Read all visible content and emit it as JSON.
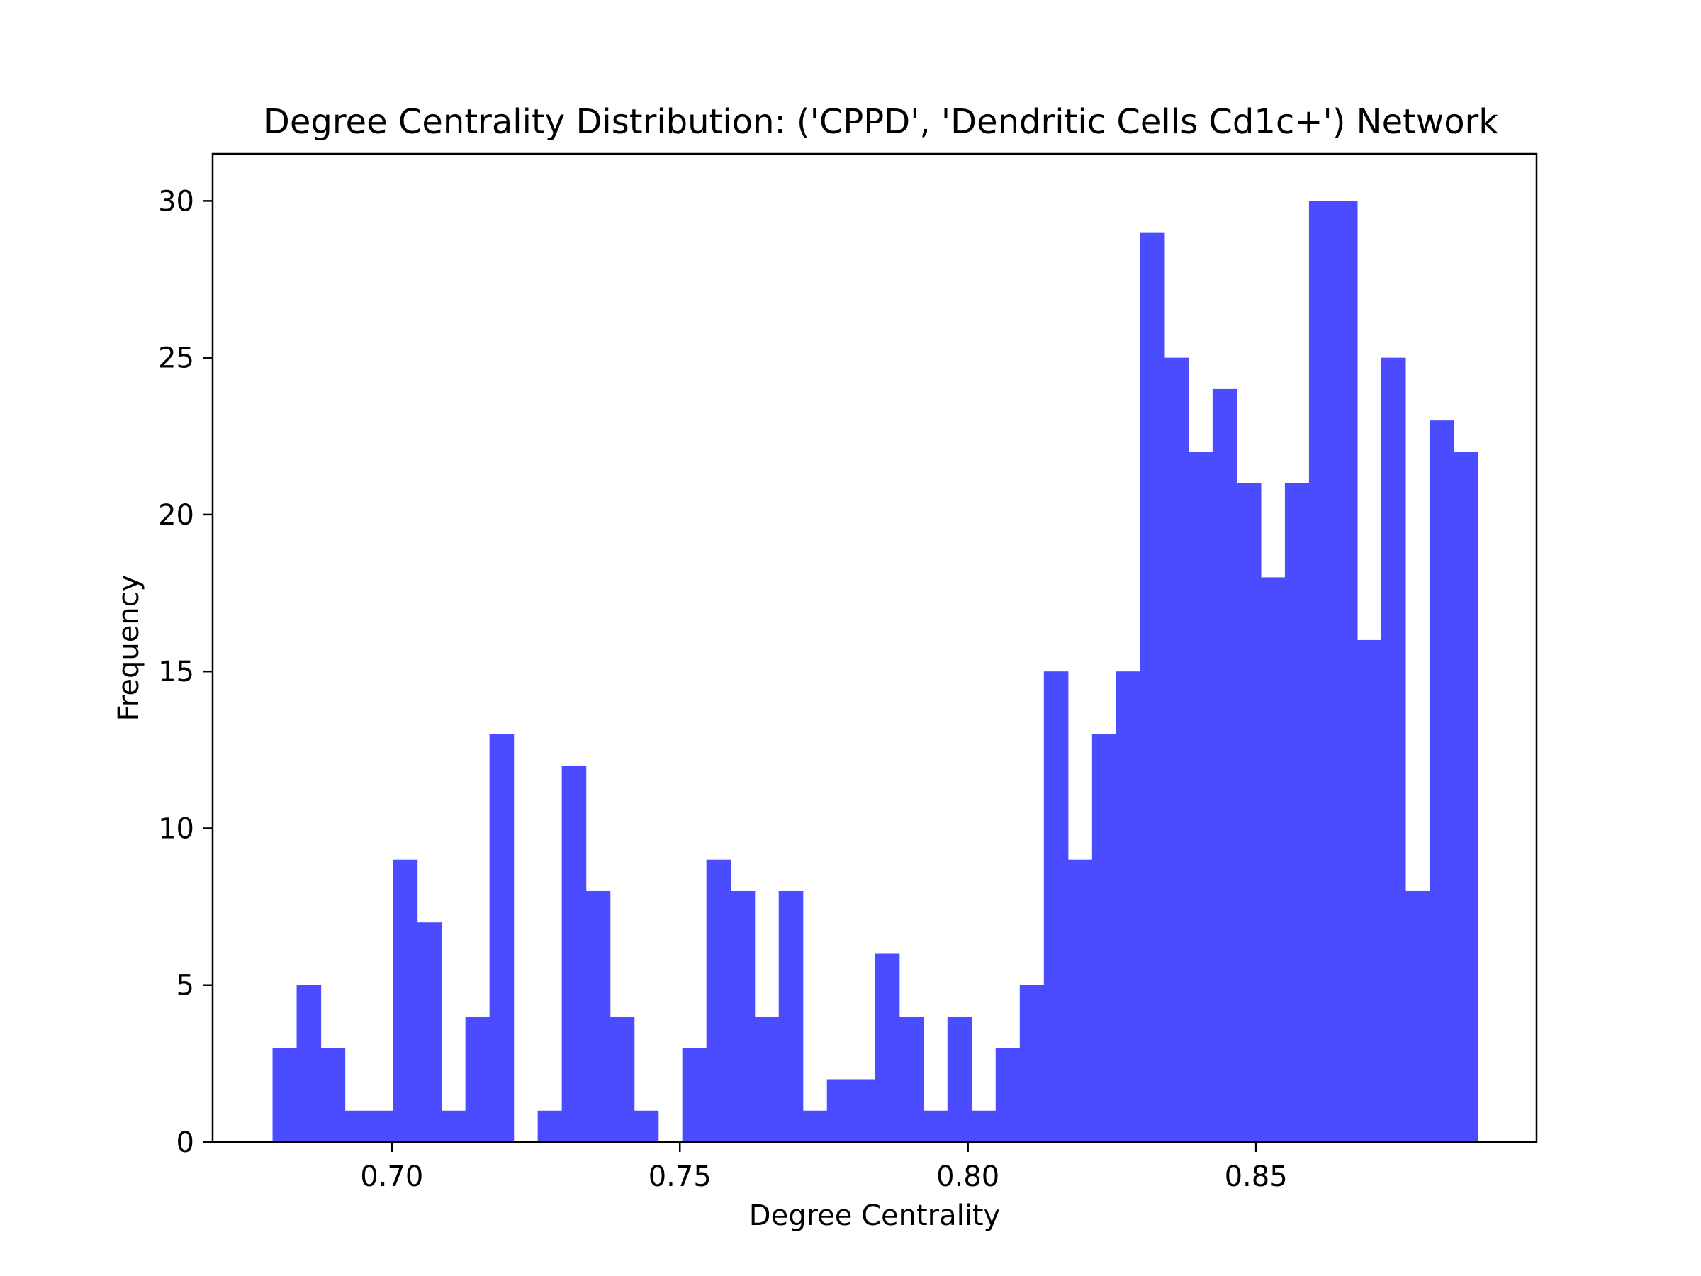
{
  "chart_data": {
    "type": "bar",
    "title": "Degree Centrality Distribution: ('CPPD', 'Dendritic Cells Cd1c+') Network",
    "xlabel": "Degree Centrality",
    "ylabel": "Frequency",
    "xlim": [
      0.6689,
      0.8987
    ],
    "ylim": [
      0,
      31.5
    ],
    "xticks": [
      {
        "value": 0.7,
        "label": "0.70"
      },
      {
        "value": 0.75,
        "label": "0.75"
      },
      {
        "value": 0.8,
        "label": "0.80"
      },
      {
        "value": 0.85,
        "label": "0.85"
      }
    ],
    "yticks": [
      {
        "value": 0,
        "label": "0"
      },
      {
        "value": 5,
        "label": "5"
      },
      {
        "value": 10,
        "label": "10"
      },
      {
        "value": 15,
        "label": "15"
      },
      {
        "value": 20,
        "label": "20"
      },
      {
        "value": 25,
        "label": "25"
      },
      {
        "value": 30,
        "label": "30"
      }
    ],
    "bin_start": 0.6793,
    "bin_width": 0.0041837,
    "values": [
      3,
      5,
      3,
      1,
      1,
      9,
      7,
      1,
      4,
      13,
      0,
      1,
      12,
      8,
      4,
      1,
      0,
      3,
      9,
      8,
      4,
      8,
      1,
      2,
      2,
      6,
      4,
      1,
      4,
      1,
      3,
      5,
      15,
      9,
      13,
      15,
      29,
      25,
      22,
      24,
      21,
      18,
      21,
      30,
      30,
      16,
      25,
      8,
      23,
      22
    ],
    "bar_color": "#4b4bff",
    "grid": false,
    "legend": "none"
  }
}
